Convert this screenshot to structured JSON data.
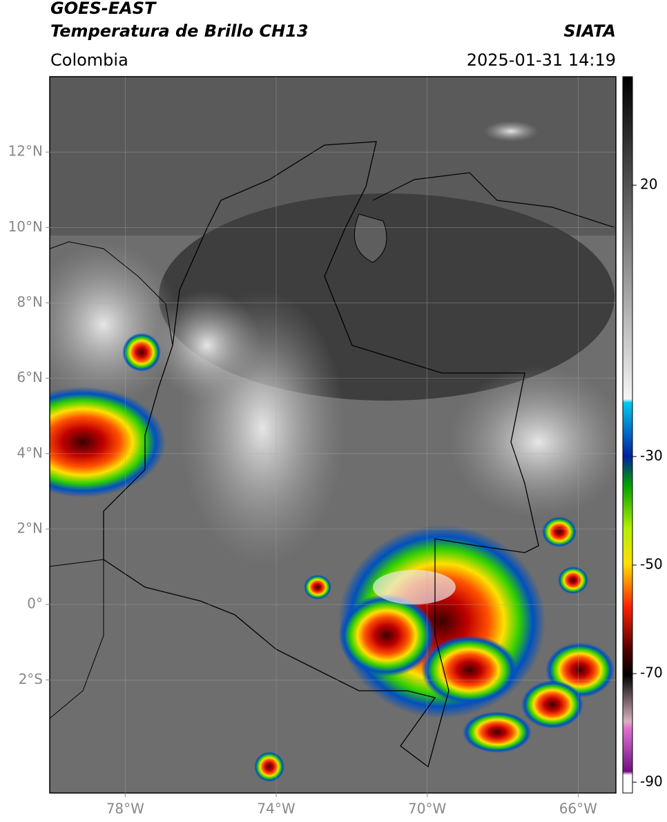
{
  "header": {
    "title": "GOES-EAST",
    "subtitle": "Temperatura de Brillo CH13",
    "source": "SIATA",
    "region": "Colombia",
    "timestamp": "2025-01-31 14:19"
  },
  "map": {
    "type": "satellite",
    "xlim": [
      -80,
      -65
    ],
    "ylim": [
      -5,
      14
    ],
    "xticks": [
      {
        "value": -78,
        "label": "78°W"
      },
      {
        "value": -74,
        "label": "74°W"
      },
      {
        "value": -70,
        "label": "70°W"
      },
      {
        "value": -66,
        "label": "66°W"
      }
    ],
    "yticks": [
      {
        "value": 12,
        "label": "12°N"
      },
      {
        "value": 10,
        "label": "10°N"
      },
      {
        "value": 8,
        "label": "8°N"
      },
      {
        "value": 6,
        "label": "6°N"
      },
      {
        "value": 4,
        "label": "4°N"
      },
      {
        "value": 2,
        "label": "2°N"
      },
      {
        "value": 0,
        "label": "0°"
      },
      {
        "value": -2,
        "label": "2°S"
      }
    ],
    "grid": true
  },
  "colorbar": {
    "lim": [
      -92,
      40
    ],
    "ticks": [
      20,
      -30,
      -50,
      -70,
      -90
    ]
  }
}
